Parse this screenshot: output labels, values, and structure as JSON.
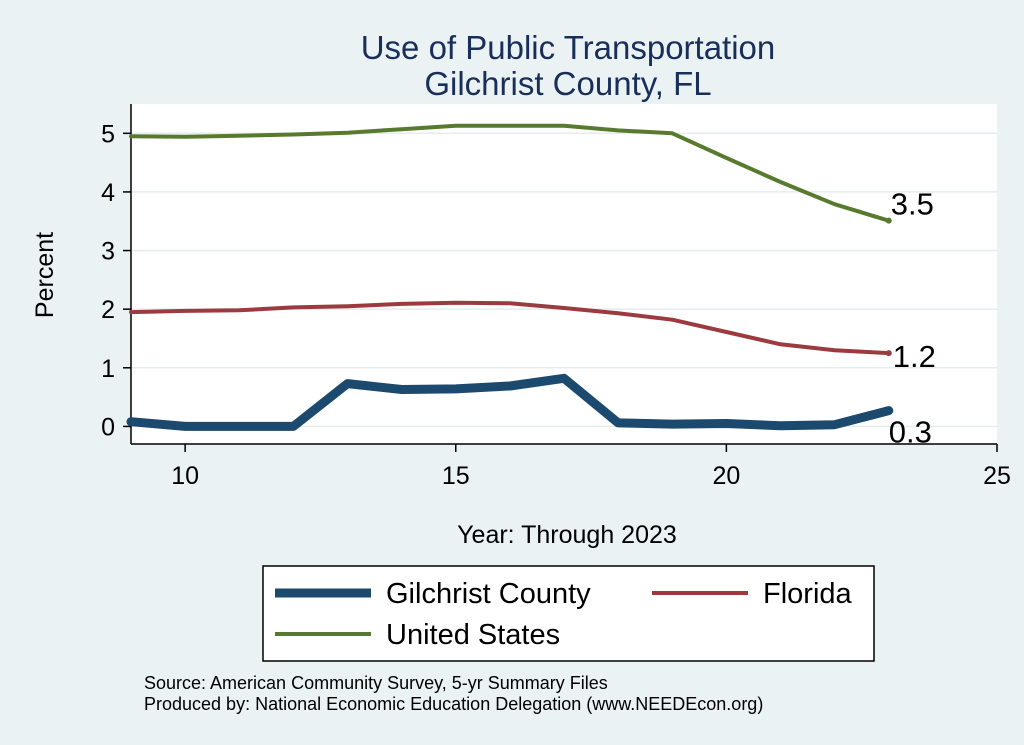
{
  "chart_data": {
    "type": "line",
    "title": "Use of Public Transportation",
    "subtitle": "Gilchrist County, FL",
    "xlabel": "Year: Through 2023",
    "ylabel": "Percent",
    "xlim": [
      9,
      25
    ],
    "ylim": [
      -0.3,
      5.5
    ],
    "xticks": [
      10,
      15,
      20,
      25
    ],
    "yticks": [
      0,
      1,
      2,
      3,
      4,
      5
    ],
    "grid": true,
    "legend_position": "bottom",
    "x": [
      9,
      10,
      11,
      12,
      13,
      14,
      15,
      16,
      17,
      18,
      19,
      20,
      21,
      22,
      23
    ],
    "series": [
      {
        "name": "Gilchrist County",
        "color": "#1b4a6e",
        "values": [
          0.08,
          0.0,
          0.0,
          0.0,
          0.73,
          0.63,
          0.64,
          0.69,
          0.82,
          0.06,
          0.04,
          0.05,
          0.01,
          0.03,
          0.27
        ],
        "end_label": "0.3"
      },
      {
        "name": "Florida",
        "color": "#9c3b3f",
        "values": [
          1.95,
          1.97,
          1.98,
          2.03,
          2.05,
          2.09,
          2.11,
          2.1,
          2.02,
          1.93,
          1.82,
          1.61,
          1.4,
          1.3,
          1.25
        ],
        "end_label": "1.2"
      },
      {
        "name": "United States",
        "color": "#587a2e",
        "values": [
          4.95,
          4.94,
          4.96,
          4.98,
          5.01,
          5.07,
          5.13,
          5.13,
          5.13,
          5.05,
          5.0,
          4.58,
          4.17,
          3.79,
          3.51
        ],
        "end_label": "3.5"
      }
    ],
    "notes": [
      "Source: American Community Survey, 5-yr Summary Files",
      "Produced by: National Economic Education Delegation (www.NEEDEcon.org)"
    ]
  }
}
